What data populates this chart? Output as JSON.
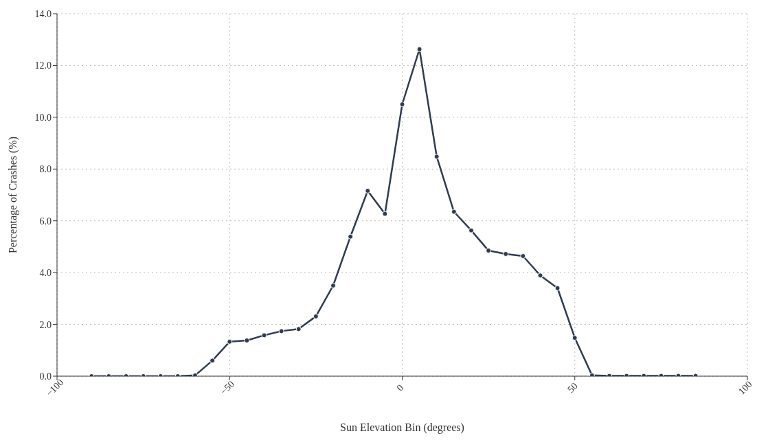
{
  "chart_data": {
    "type": "line",
    "xlabel": "Sun Elevation Bin (degrees)",
    "ylabel": "Percentage of Crashes (%)",
    "x": [
      -90,
      -85,
      -80,
      -75,
      -70,
      -65,
      -60,
      -55,
      -50,
      -45,
      -40,
      -35,
      -30,
      -25,
      -20,
      -15,
      -10,
      -5,
      0,
      5,
      10,
      15,
      20,
      25,
      30,
      35,
      40,
      45,
      50,
      55,
      60,
      65,
      70,
      75,
      80,
      85
    ],
    "series": [
      {
        "color": "#2e3b50",
        "values": [
          0,
          0,
          0,
          0,
          0,
          0,
          0.03,
          0.6,
          1.33,
          1.38,
          1.58,
          1.74,
          1.82,
          2.31,
          3.5,
          5.39,
          7.16,
          6.27,
          10.5,
          12.63,
          8.48,
          6.35,
          5.63,
          4.85,
          4.72,
          4.64,
          3.89,
          3.4,
          1.48,
          0.03,
          0.01,
          0.01,
          0.01,
          0.01,
          0.01,
          0.01
        ]
      }
    ],
    "xlim": [
      -100,
      100
    ],
    "xticks": [
      {
        "value": -100,
        "label": "−100"
      },
      {
        "value": -50,
        "label": "−50"
      },
      0,
      50,
      100
    ],
    "ylim": [
      0,
      14
    ],
    "yticks": [
      {
        "value": 0,
        "label": "0.0"
      },
      {
        "value": 2,
        "label": "2.0"
      },
      {
        "value": 4,
        "label": "4.0"
      },
      {
        "value": 6,
        "label": "6.0"
      },
      {
        "value": 8,
        "label": "8.0"
      },
      {
        "value": 10,
        "label": "10.0"
      },
      {
        "value": 12,
        "label": "12.0"
      },
      {
        "value": 14,
        "label": "14.0"
      }
    ],
    "grid": true,
    "marker": "circle",
    "line_style": "solid"
  }
}
